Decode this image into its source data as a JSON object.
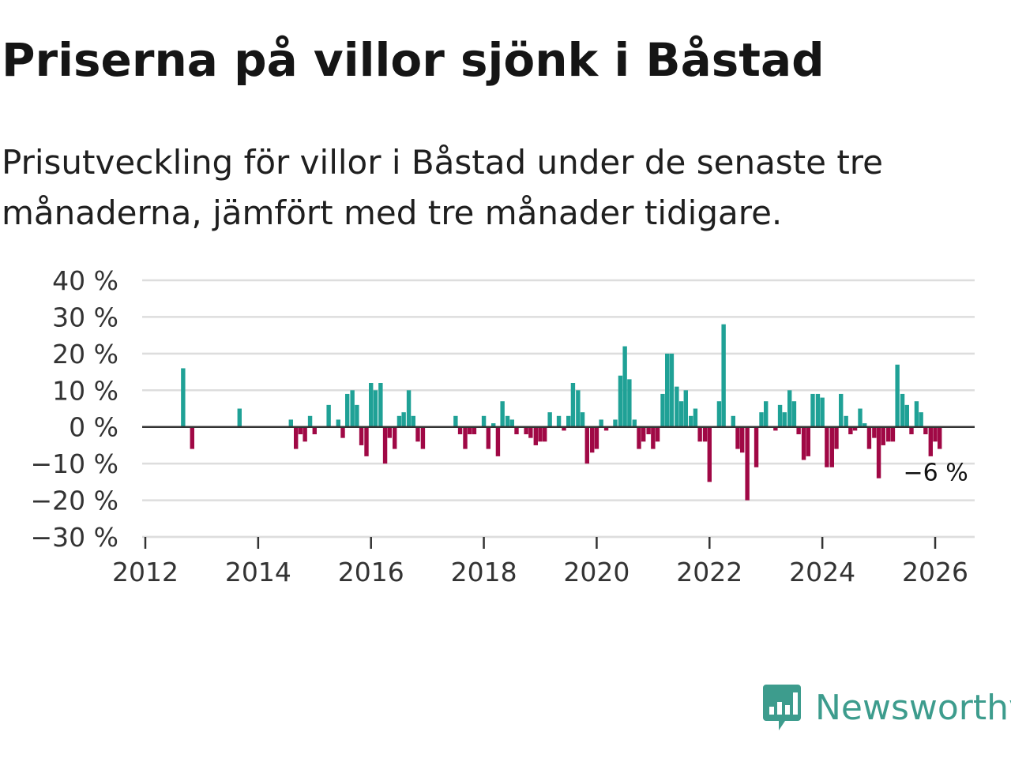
{
  "title": "Priserna på villor sjönk i Båstad",
  "subtitle": "Prisutveckling för villor i Båstad under de senaste tre månaderna, jämfört med tre månader tidigare.",
  "brand": {
    "name": "Newsworthy",
    "color": "#3d9c8d",
    "icon": "newsworthy-chart-bubble-icon"
  },
  "colors": {
    "positive": "#1fa196",
    "negative": "#a00845",
    "grid": "#dddddd",
    "zero_line": "#333333"
  },
  "chart_data": {
    "type": "bar",
    "title": "Priserna på villor sjönk i Båstad",
    "xlabel": "",
    "ylabel": "",
    "ylim": [
      -30,
      40
    ],
    "xlim": [
      2012,
      2026.7
    ],
    "y_ticks": [
      "40 %",
      "30 %",
      "20 %",
      "10 %",
      "0 %",
      "−10 %",
      "−20 %",
      "−30 %"
    ],
    "y_tick_values": [
      40,
      30,
      20,
      10,
      0,
      -10,
      -20,
      -30
    ],
    "x_ticks": [
      "2012",
      "2014",
      "2016",
      "2018",
      "2020",
      "2022",
      "2024",
      "2026"
    ],
    "x_tick_values": [
      2012,
      2014,
      2016,
      2018,
      2020,
      2022,
      2024,
      2026
    ],
    "last_value_label": "−6 %",
    "grid": true,
    "series": [
      {
        "name": "Prisutveckling",
        "points": [
          {
            "t": 2012.67,
            "v": 16
          },
          {
            "t": 2012.83,
            "v": -6
          },
          {
            "t": 2013.67,
            "v": 5
          },
          {
            "t": 2014.58,
            "v": 2
          },
          {
            "t": 2014.67,
            "v": -6
          },
          {
            "t": 2014.75,
            "v": -2
          },
          {
            "t": 2014.83,
            "v": -4
          },
          {
            "t": 2014.92,
            "v": 3
          },
          {
            "t": 2015.0,
            "v": -2
          },
          {
            "t": 2015.25,
            "v": 6
          },
          {
            "t": 2015.42,
            "v": 2
          },
          {
            "t": 2015.5,
            "v": -3
          },
          {
            "t": 2015.58,
            "v": 9
          },
          {
            "t": 2015.67,
            "v": 10
          },
          {
            "t": 2015.75,
            "v": 6
          },
          {
            "t": 2015.83,
            "v": -5
          },
          {
            "t": 2015.92,
            "v": -8
          },
          {
            "t": 2016.0,
            "v": 12
          },
          {
            "t": 2016.08,
            "v": 10
          },
          {
            "t": 2016.17,
            "v": 12
          },
          {
            "t": 2016.25,
            "v": -10
          },
          {
            "t": 2016.33,
            "v": -3
          },
          {
            "t": 2016.42,
            "v": -6
          },
          {
            "t": 2016.5,
            "v": 3
          },
          {
            "t": 2016.58,
            "v": 4
          },
          {
            "t": 2016.67,
            "v": 10
          },
          {
            "t": 2016.75,
            "v": 3
          },
          {
            "t": 2016.83,
            "v": -4
          },
          {
            "t": 2016.92,
            "v": -6
          },
          {
            "t": 2017.5,
            "v": 3
          },
          {
            "t": 2017.58,
            "v": -2
          },
          {
            "t": 2017.67,
            "v": -6
          },
          {
            "t": 2017.75,
            "v": -2
          },
          {
            "t": 2017.83,
            "v": -2
          },
          {
            "t": 2018.0,
            "v": 3
          },
          {
            "t": 2018.08,
            "v": -6
          },
          {
            "t": 2018.17,
            "v": 1
          },
          {
            "t": 2018.25,
            "v": -8
          },
          {
            "t": 2018.33,
            "v": 7
          },
          {
            "t": 2018.42,
            "v": 3
          },
          {
            "t": 2018.5,
            "v": 2
          },
          {
            "t": 2018.58,
            "v": -2
          },
          {
            "t": 2018.75,
            "v": -2
          },
          {
            "t": 2018.83,
            "v": -3
          },
          {
            "t": 2018.92,
            "v": -5
          },
          {
            "t": 2019.0,
            "v": -4
          },
          {
            "t": 2019.08,
            "v": -4
          },
          {
            "t": 2019.17,
            "v": 4
          },
          {
            "t": 2019.33,
            "v": 3
          },
          {
            "t": 2019.42,
            "v": -1
          },
          {
            "t": 2019.5,
            "v": 3
          },
          {
            "t": 2019.58,
            "v": 12
          },
          {
            "t": 2019.67,
            "v": 10
          },
          {
            "t": 2019.75,
            "v": 4
          },
          {
            "t": 2019.83,
            "v": -10
          },
          {
            "t": 2019.92,
            "v": -7
          },
          {
            "t": 2020.0,
            "v": -6
          },
          {
            "t": 2020.08,
            "v": 2
          },
          {
            "t": 2020.17,
            "v": -1
          },
          {
            "t": 2020.33,
            "v": 2
          },
          {
            "t": 2020.42,
            "v": 14
          },
          {
            "t": 2020.5,
            "v": 22
          },
          {
            "t": 2020.58,
            "v": 13
          },
          {
            "t": 2020.67,
            "v": 2
          },
          {
            "t": 2020.75,
            "v": -6
          },
          {
            "t": 2020.83,
            "v": -4
          },
          {
            "t": 2020.92,
            "v": -2
          },
          {
            "t": 2021.0,
            "v": -6
          },
          {
            "t": 2021.08,
            "v": -4
          },
          {
            "t": 2021.17,
            "v": 9
          },
          {
            "t": 2021.25,
            "v": 20
          },
          {
            "t": 2021.33,
            "v": 20
          },
          {
            "t": 2021.42,
            "v": 11
          },
          {
            "t": 2021.5,
            "v": 7
          },
          {
            "t": 2021.58,
            "v": 10
          },
          {
            "t": 2021.67,
            "v": 3
          },
          {
            "t": 2021.75,
            "v": 5
          },
          {
            "t": 2021.83,
            "v": -4
          },
          {
            "t": 2021.92,
            "v": -4
          },
          {
            "t": 2022.0,
            "v": -15
          },
          {
            "t": 2022.17,
            "v": 7
          },
          {
            "t": 2022.25,
            "v": 28
          },
          {
            "t": 2022.42,
            "v": 3
          },
          {
            "t": 2022.5,
            "v": -6
          },
          {
            "t": 2022.58,
            "v": -7
          },
          {
            "t": 2022.67,
            "v": -20
          },
          {
            "t": 2022.83,
            "v": -11
          },
          {
            "t": 2022.92,
            "v": 4
          },
          {
            "t": 2023.0,
            "v": 7
          },
          {
            "t": 2023.17,
            "v": -1
          },
          {
            "t": 2023.25,
            "v": 6
          },
          {
            "t": 2023.33,
            "v": 4
          },
          {
            "t": 2023.42,
            "v": 10
          },
          {
            "t": 2023.5,
            "v": 7
          },
          {
            "t": 2023.58,
            "v": -2
          },
          {
            "t": 2023.67,
            "v": -9
          },
          {
            "t": 2023.75,
            "v": -8
          },
          {
            "t": 2023.83,
            "v": 9
          },
          {
            "t": 2023.92,
            "v": 9
          },
          {
            "t": 2024.0,
            "v": 8
          },
          {
            "t": 2024.08,
            "v": -11
          },
          {
            "t": 2024.17,
            "v": -11
          },
          {
            "t": 2024.25,
            "v": -6
          },
          {
            "t": 2024.33,
            "v": 9
          },
          {
            "t": 2024.42,
            "v": 3
          },
          {
            "t": 2024.5,
            "v": -2
          },
          {
            "t": 2024.58,
            "v": -1
          },
          {
            "t": 2024.67,
            "v": 5
          },
          {
            "t": 2024.75,
            "v": 1
          },
          {
            "t": 2024.83,
            "v": -6
          },
          {
            "t": 2024.92,
            "v": -3
          },
          {
            "t": 2025.0,
            "v": -14
          },
          {
            "t": 2025.08,
            "v": -5
          },
          {
            "t": 2025.17,
            "v": -4
          },
          {
            "t": 2025.25,
            "v": -4
          },
          {
            "t": 2025.33,
            "v": 17
          },
          {
            "t": 2025.42,
            "v": 9
          },
          {
            "t": 2025.5,
            "v": 6
          },
          {
            "t": 2025.58,
            "v": -2
          },
          {
            "t": 2025.67,
            "v": 7
          },
          {
            "t": 2025.75,
            "v": 4
          },
          {
            "t": 2025.83,
            "v": -2
          },
          {
            "t": 2025.92,
            "v": -8
          },
          {
            "t": 2026.0,
            "v": -4
          },
          {
            "t": 2026.08,
            "v": -6
          }
        ]
      }
    ]
  }
}
